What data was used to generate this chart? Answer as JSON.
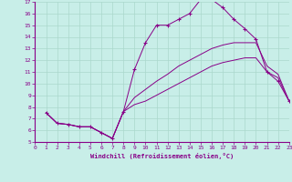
{
  "xlabel": "Windchill (Refroidissement éolien,°C)",
  "xlim": [
    0,
    23
  ],
  "ylim": [
    5,
    17
  ],
  "xticks": [
    0,
    1,
    2,
    3,
    4,
    5,
    6,
    7,
    8,
    9,
    10,
    11,
    12,
    13,
    14,
    15,
    16,
    17,
    18,
    19,
    20,
    21,
    22,
    23
  ],
  "yticks": [
    5,
    6,
    7,
    8,
    9,
    10,
    11,
    12,
    13,
    14,
    15,
    16,
    17
  ],
  "bg_color": "#c8eee8",
  "line_color": "#880088",
  "grid_color": "#aad8cc",
  "line1_x": [
    1,
    2,
    3,
    4,
    5,
    6,
    7,
    8,
    9,
    10,
    11,
    12,
    13,
    14,
    15,
    16,
    17,
    18,
    19,
    20,
    21,
    22,
    23
  ],
  "line1_y": [
    7.5,
    6.6,
    6.5,
    6.3,
    6.3,
    5.8,
    5.3,
    7.6,
    11.2,
    13.5,
    15.0,
    15.0,
    15.5,
    16.0,
    17.2,
    17.2,
    16.5,
    15.5,
    14.7,
    13.8,
    11.0,
    10.2,
    8.5
  ],
  "line2_x": [
    1,
    2,
    3,
    4,
    5,
    6,
    7,
    8,
    9,
    10,
    11,
    12,
    13,
    14,
    15,
    16,
    17,
    18,
    19,
    20,
    21,
    22,
    23
  ],
  "line2_y": [
    7.5,
    6.6,
    6.5,
    6.3,
    6.3,
    5.8,
    5.3,
    7.6,
    8.2,
    8.5,
    9.0,
    9.5,
    10.0,
    10.5,
    11.0,
    11.5,
    11.8,
    12.0,
    12.2,
    12.2,
    11.0,
    10.5,
    8.5
  ],
  "line3_x": [
    1,
    2,
    3,
    4,
    5,
    6,
    7,
    8,
    9,
    10,
    11,
    12,
    13,
    14,
    15,
    16,
    17,
    18,
    19,
    20,
    21,
    22,
    23
  ],
  "line3_y": [
    7.5,
    6.6,
    6.5,
    6.3,
    6.3,
    5.8,
    5.3,
    7.6,
    8.8,
    9.5,
    10.2,
    10.8,
    11.5,
    12.0,
    12.5,
    13.0,
    13.3,
    13.5,
    13.5,
    13.5,
    11.5,
    10.8,
    8.5
  ]
}
